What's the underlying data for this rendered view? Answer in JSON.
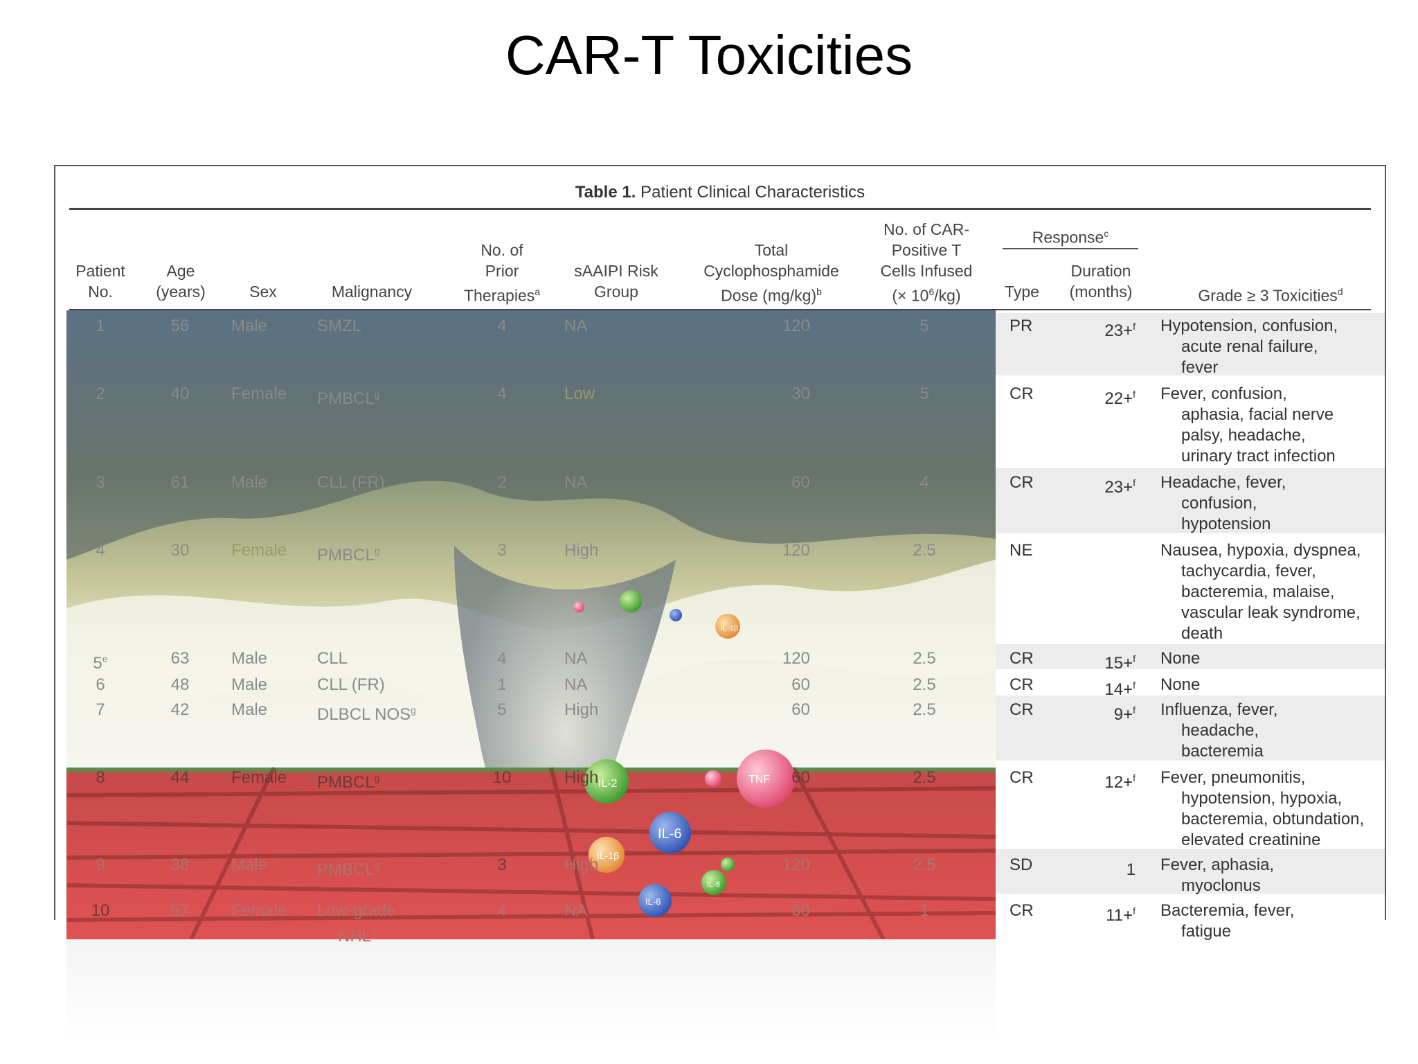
{
  "slide": {
    "title": "CAR-T Toxicities"
  },
  "table": {
    "caption_bold": "Table 1.",
    "caption_rest": " Patient Clinical Characteristics",
    "headers": {
      "patient": [
        "Patient",
        "No."
      ],
      "age": [
        "Age",
        "(years)"
      ],
      "sex": "Sex",
      "malignancy": "Malignancy",
      "prior": [
        "No. of",
        "Prior",
        "Therapies"
      ],
      "prior_sup": "a",
      "risk": [
        "sAAIPI Risk",
        "Group"
      ],
      "cyclo": [
        "Total",
        "Cyclophosphamide",
        "Dose (mg/kg)"
      ],
      "cyclo_sup": "b",
      "cells": [
        "No. of CAR-",
        "Positive T",
        "Cells Infused",
        "(× 10",
        "/kg)"
      ],
      "cells_exp": "6",
      "response": "Response",
      "response_sup": "c",
      "type": "Type",
      "duration": [
        "Duration",
        "(months)"
      ],
      "tox": "Grade ≥ 3 Toxicities",
      "tox_sup": "d"
    },
    "rows": [
      {
        "pt": "1",
        "age": "56",
        "sex": "Male",
        "mal": "SMZL",
        "prior": "4",
        "risk": "NA",
        "cyclo": "120",
        "cells": "5",
        "type": "PR",
        "dur": "23+",
        "dur_sup": "f",
        "tox": [
          "Hypotension, confusion,",
          "acute renal failure,",
          "fever"
        ]
      },
      {
        "pt": "2",
        "age": "40",
        "sex": "Female",
        "mal": "PMBCL",
        "mal_sup": "g",
        "prior": "4",
        "risk": "Low",
        "cyclo": "30",
        "cells": "5",
        "type": "CR",
        "dur": "22+",
        "dur_sup": "f",
        "tox": [
          "Fever, confusion,",
          "aphasia, facial nerve",
          "palsy, headache,",
          "urinary tract infection"
        ]
      },
      {
        "pt": "3",
        "age": "61",
        "sex": "Male",
        "mal": "CLL (FR)",
        "prior": "2",
        "risk": "NA",
        "cyclo": "60",
        "cells": "4",
        "type": "CR",
        "dur": "23+",
        "dur_sup": "f",
        "tox": [
          "Headache, fever,",
          "confusion,",
          "hypotension"
        ]
      },
      {
        "pt": "4",
        "age": "30",
        "sex": "Female",
        "mal": "PMBCL",
        "mal_sup": "g",
        "prior": "3",
        "risk": "High",
        "cyclo": "120",
        "cells": "2.5",
        "type": "NE",
        "dur": "",
        "dur_sup": "",
        "tox": [
          "Nausea, hypoxia, dyspnea,",
          "tachycardia, fever,",
          "bacteremia, malaise,",
          "vascular leak syndrome,",
          "death"
        ]
      },
      {
        "pt": "5",
        "pt_sup": "e",
        "age": "63",
        "sex": "Male",
        "mal": "CLL",
        "prior": "4",
        "risk": "NA",
        "cyclo": "120",
        "cells": "2.5",
        "type": "CR",
        "dur": "15+",
        "dur_sup": "f",
        "tox": [
          "None"
        ]
      },
      {
        "pt": "6",
        "age": "48",
        "sex": "Male",
        "mal": "CLL (FR)",
        "prior": "1",
        "risk": "NA",
        "cyclo": "60",
        "cells": "2.5",
        "type": "CR",
        "dur": "14+",
        "dur_sup": "f",
        "tox": [
          "None"
        ]
      },
      {
        "pt": "7",
        "age": "42",
        "sex": "Male",
        "mal": "DLBCL NOS",
        "mal_sup": "g",
        "prior": "5",
        "risk": "High",
        "cyclo": "60",
        "cells": "2.5",
        "type": "CR",
        "dur": "9+",
        "dur_sup": "f",
        "tox": [
          "Influenza, fever,",
          "headache,",
          "bacteremia"
        ]
      },
      {
        "pt": "8",
        "age": "44",
        "sex": "Female",
        "mal": "PMBCL",
        "mal_sup": "g",
        "prior": "10",
        "risk": "High",
        "cyclo": "60",
        "cells": "2.5",
        "type": "CR",
        "dur": "12+",
        "dur_sup": "f",
        "tox": [
          "Fever, pneumonitis,",
          "hypotension, hypoxia,",
          "bacteremia, obtundation,",
          "elevated creatinine"
        ]
      },
      {
        "pt": "9",
        "age": "38",
        "sex": "Male",
        "mal": "PMBCL",
        "mal_sup": "g",
        "prior": "3",
        "risk": "High",
        "cyclo": "120",
        "cells": "2.5",
        "type": "SD",
        "dur": "1",
        "dur_sup": "",
        "tox": [
          "Fever, aphasia,",
          "myoclonus"
        ]
      },
      {
        "pt": "10",
        "age": "57",
        "sex": "Female",
        "mal": "Low-grade",
        "mal2": "NHL",
        "mal_sup": "h",
        "prior": "4",
        "risk": "NA",
        "cyclo": "60",
        "cells": "1",
        "type": "CR",
        "dur": "11+",
        "dur_sup": "f",
        "tox": [
          "Bacteremia, fever,",
          "fatigue"
        ]
      }
    ]
  },
  "artwork": {
    "labels": [
      "IL-2",
      "IL-6",
      "IL-6",
      "IL-1β",
      "IL-1β",
      "TNF",
      "IL-8"
    ]
  }
}
